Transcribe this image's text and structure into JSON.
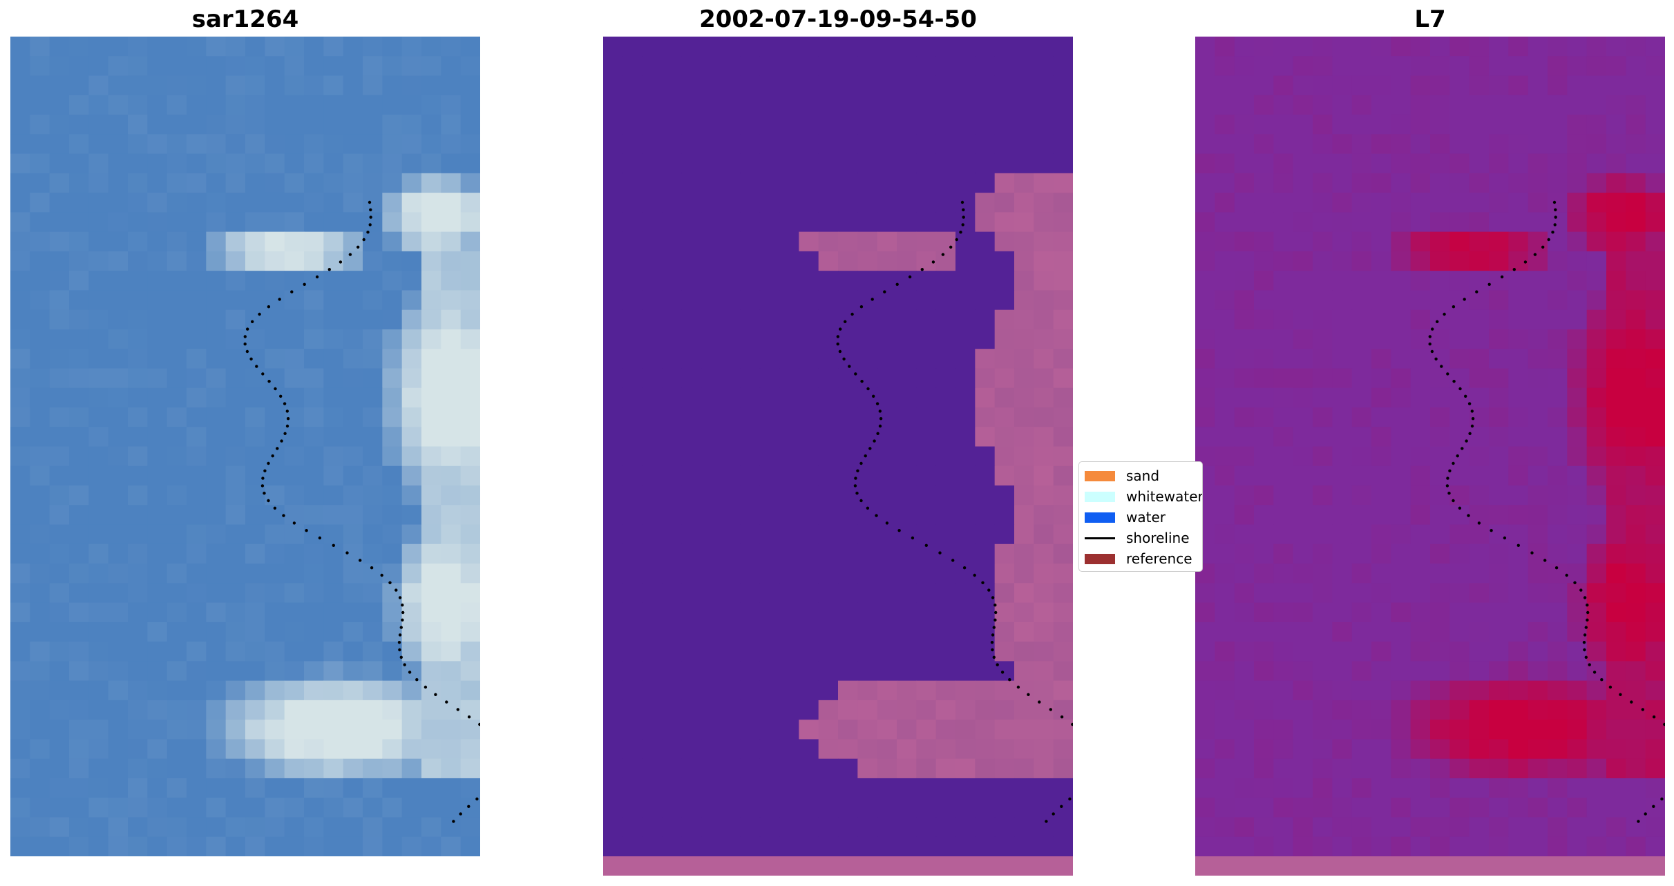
{
  "panels": [
    {
      "title": "sar1264",
      "kind": "rgb-satellite-image"
    },
    {
      "title": "2002-07-19-09-54-50",
      "kind": "classified-image"
    },
    {
      "title": "L7",
      "kind": "index-image"
    }
  ],
  "legend": {
    "items": [
      {
        "label": "sand",
        "color": "#f58a3c",
        "kind": "swatch"
      },
      {
        "label": "whitewater",
        "color": "#ccffff",
        "kind": "swatch"
      },
      {
        "label": "water",
        "color": "#0f5ef2",
        "kind": "swatch"
      },
      {
        "label": "shoreline",
        "color": "#000000",
        "kind": "line"
      },
      {
        "label": "reference",
        "color": "#9c3030",
        "kind": "swatch"
      }
    ]
  },
  "colors": {
    "water_class": "#542296",
    "land_class": "#b66098",
    "index_low": "#7e2a9c",
    "index_high": "#c80040",
    "rgb_water": "#4d82c0",
    "rgb_bright": "#eef5ee",
    "shoreline_dots": "#000000"
  }
}
